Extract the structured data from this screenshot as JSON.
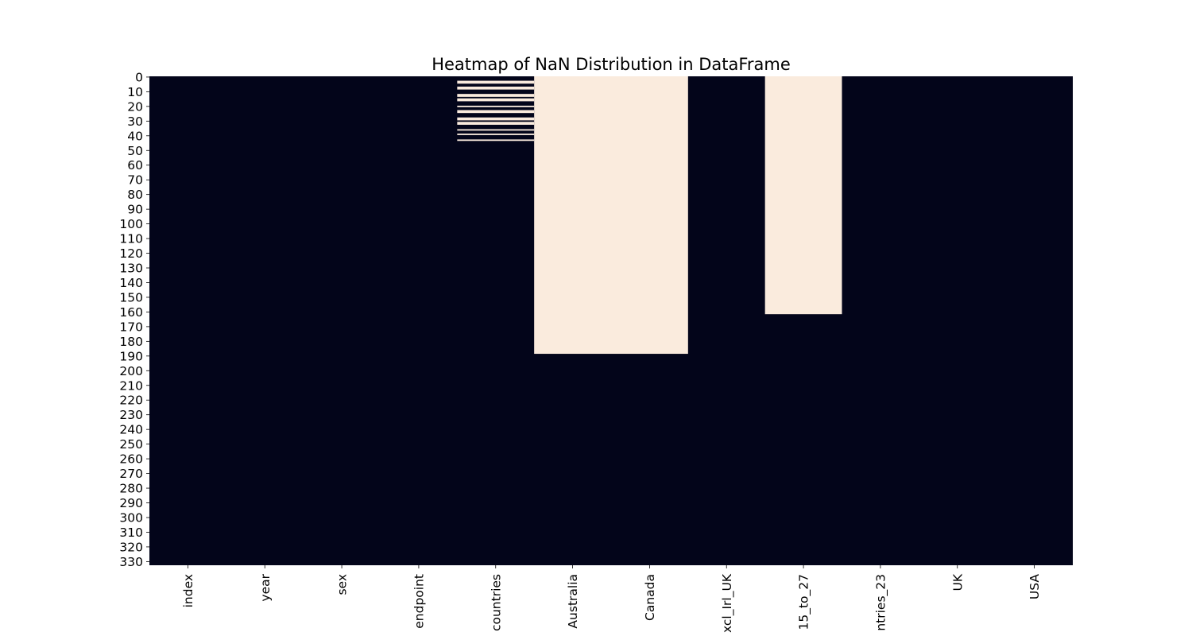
{
  "chart_data": {
    "type": "heatmap",
    "title": "Heatmap of NaN Distribution in DataFrame",
    "xlabel": "",
    "ylabel": "",
    "columns": [
      "index",
      "year",
      "sex",
      "endpoint",
      "countries",
      "Australia",
      "Canada",
      "xcl_Irl_UK",
      "15_to_27",
      "ntries_23",
      "UK",
      "USA"
    ],
    "row_count": 333,
    "y_ticks": [
      0,
      10,
      20,
      30,
      40,
      50,
      60,
      70,
      80,
      90,
      100,
      110,
      120,
      130,
      140,
      150,
      160,
      170,
      180,
      190,
      200,
      210,
      220,
      230,
      240,
      250,
      260,
      270,
      280,
      290,
      300,
      310,
      320,
      330
    ],
    "missing_ranges": {
      "countries": [
        [
          3,
          5
        ],
        [
          7,
          9
        ],
        [
          12,
          14
        ],
        [
          15,
          17
        ],
        [
          20,
          21
        ],
        [
          23,
          25
        ],
        [
          28,
          30
        ],
        [
          31,
          33
        ],
        [
          36,
          37
        ],
        [
          39,
          40
        ],
        [
          43,
          44
        ]
      ],
      "Australia": [
        [
          0,
          189
        ]
      ],
      "Canada": [
        [
          0,
          189
        ]
      ],
      "15_to_27": [
        [
          0,
          162
        ]
      ]
    },
    "colors": {
      "present": "#03051a",
      "missing": "#faebdd"
    },
    "colorbar": false,
    "grid": false
  }
}
